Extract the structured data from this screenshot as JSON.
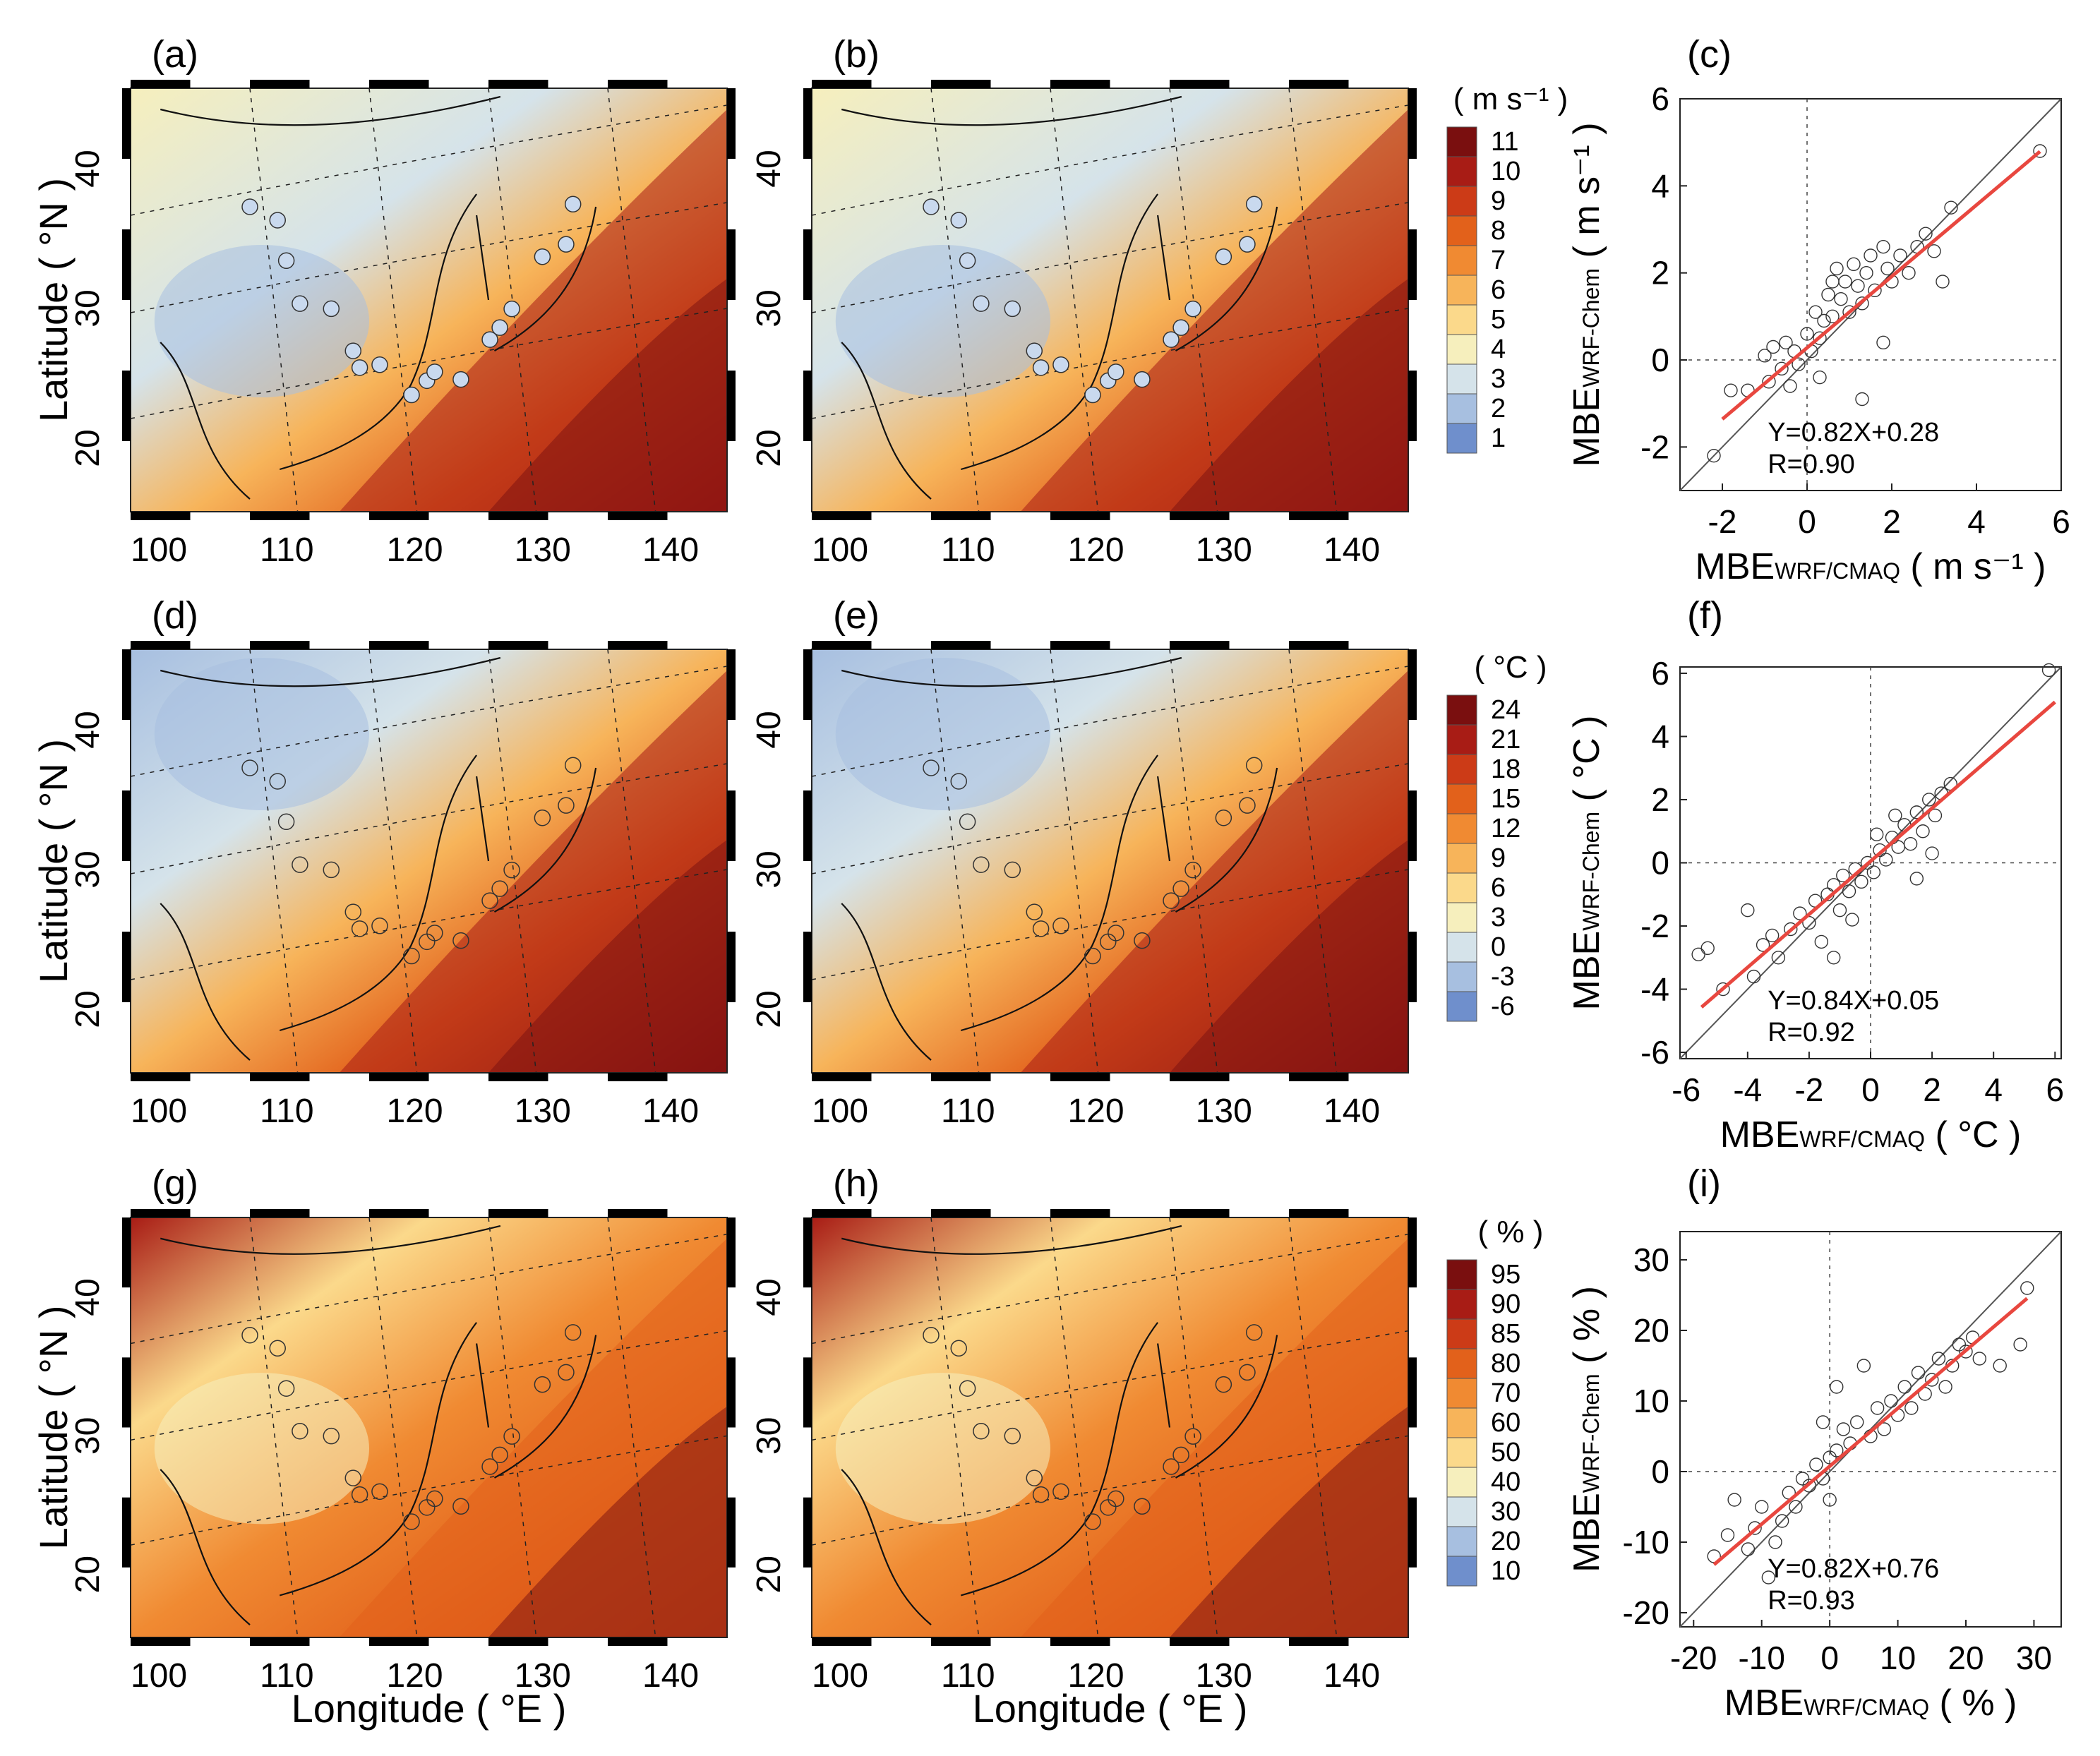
{
  "figure": {
    "maps": {
      "panel_labels": [
        "(a)",
        "(b)",
        "(d)",
        "(e)",
        "(g)",
        "(h)"
      ],
      "x_ticks": [
        "100",
        "110",
        "120",
        "130",
        "140"
      ],
      "y_ticks": [
        "20",
        "30",
        "40"
      ],
      "ylabel": "Latitude ( °N )",
      "xlabel": "Longitude ( °E )",
      "coast_color": "#111111",
      "grid_color": "#222222"
    },
    "colorbars": [
      {
        "unit": "( m s⁻¹ )",
        "labels": [
          "11",
          "10",
          "9",
          "8",
          "7",
          "6",
          "5",
          "4",
          "3",
          "2",
          "1"
        ],
        "colors": [
          "#7a0f0f",
          "#a81c15",
          "#cc3b17",
          "#e2611b",
          "#f08a32",
          "#f7b45a",
          "#fbd98b",
          "#f6efbd",
          "#d5e3ea",
          "#a7bfe0",
          "#6f8fcc"
        ]
      },
      {
        "unit": "( °C )",
        "labels": [
          "24",
          "21",
          "18",
          "15",
          "12",
          "9",
          "6",
          "3",
          "0",
          "-3",
          "-6"
        ],
        "colors": [
          "#7a0f0f",
          "#a81c15",
          "#cc3b17",
          "#e2611b",
          "#f08a32",
          "#f7b45a",
          "#fbd98b",
          "#f6efbd",
          "#d5e3ea",
          "#a7bfe0",
          "#6f8fcc"
        ]
      },
      {
        "unit": "( % )",
        "labels": [
          "95",
          "90",
          "85",
          "80",
          "70",
          "60",
          "50",
          "40",
          "30",
          "20",
          "10"
        ],
        "colors": [
          "#7a0f0f",
          "#a81c15",
          "#cc3b17",
          "#e2611b",
          "#f08a32",
          "#f7b45a",
          "#fbd98b",
          "#f6efbd",
          "#d5e3ea",
          "#a7bfe0",
          "#6f8fcc"
        ]
      }
    ],
    "scatter_style": {
      "identity_color": "#555555",
      "fit_color": "#e8473f",
      "marker_color": "#333333"
    }
  },
  "chart_data": [
    {
      "type": "scatter",
      "panel": "(c)",
      "variable": "wind speed",
      "xlabel_main": "MBE",
      "xlabel_sub": "WRF/CMAQ",
      "xlabel_unit": "( m s⁻¹ )",
      "ylabel_main": "MBE",
      "ylabel_sub": "WRF-Chem",
      "ylabel_unit": "( m s⁻¹ )",
      "xlim": [
        -3,
        6
      ],
      "ylim": [
        -3,
        6
      ],
      "xticks": [
        -2,
        0,
        2,
        4,
        6
      ],
      "yticks": [
        -2,
        0,
        2,
        4,
        6
      ],
      "fit": {
        "slope": 0.82,
        "intercept": 0.28,
        "x_range": [
          -2,
          5.5
        ]
      },
      "equation": "Y=0.82X+0.28",
      "r_text": "R=0.90",
      "points": [
        [
          -2.2,
          -2.2
        ],
        [
          -1.8,
          -0.7
        ],
        [
          -1.4,
          -0.7
        ],
        [
          -1.0,
          0.1
        ],
        [
          -0.8,
          0.3
        ],
        [
          -0.6,
          -0.2
        ],
        [
          -0.5,
          0.4
        ],
        [
          -0.4,
          -0.6
        ],
        [
          -0.3,
          0.2
        ],
        [
          -0.2,
          -0.1
        ],
        [
          0.0,
          0.6
        ],
        [
          0.1,
          0.2
        ],
        [
          0.2,
          1.1
        ],
        [
          0.3,
          0.5
        ],
        [
          0.4,
          0.9
        ],
        [
          0.5,
          1.5
        ],
        [
          0.6,
          1.0
        ],
        [
          0.7,
          2.1
        ],
        [
          0.8,
          1.4
        ],
        [
          0.9,
          1.8
        ],
        [
          1.0,
          1.1
        ],
        [
          1.1,
          2.2
        ],
        [
          1.2,
          1.7
        ],
        [
          1.3,
          1.3
        ],
        [
          1.4,
          2.0
        ],
        [
          1.5,
          2.4
        ],
        [
          1.6,
          1.6
        ],
        [
          1.8,
          2.6
        ],
        [
          1.9,
          2.1
        ],
        [
          2.0,
          1.8
        ],
        [
          2.2,
          2.4
        ],
        [
          2.4,
          2.0
        ],
        [
          2.6,
          2.6
        ],
        [
          2.8,
          2.9
        ],
        [
          3.0,
          2.5
        ],
        [
          3.2,
          1.8
        ],
        [
          3.4,
          3.5
        ],
        [
          1.3,
          -0.9
        ],
        [
          0.3,
          -0.4
        ],
        [
          1.8,
          0.4
        ],
        [
          -0.9,
          -0.5
        ],
        [
          0.6,
          1.8
        ],
        [
          5.5,
          4.8
        ]
      ]
    },
    {
      "type": "scatter",
      "panel": "(f)",
      "variable": "temperature",
      "xlabel_main": "MBE",
      "xlabel_sub": "WRF/CMAQ",
      "xlabel_unit": "( °C )",
      "ylabel_main": "MBE",
      "ylabel_sub": "WRF-Chem",
      "ylabel_unit": "( °C )",
      "xlim": [
        -6.2,
        6.2
      ],
      "ylim": [
        -6.2,
        6.2
      ],
      "xticks": [
        -6,
        -4,
        -2,
        0,
        2,
        4,
        6
      ],
      "yticks": [
        -6,
        -4,
        -2,
        0,
        2,
        4,
        6
      ],
      "fit": {
        "slope": 0.84,
        "intercept": 0.05,
        "x_range": [
          -5.5,
          6
        ]
      },
      "equation": "Y=0.84X+0.05",
      "r_text": "R=0.92",
      "points": [
        [
          -5.6,
          -2.9
        ],
        [
          -5.3,
          -2.7
        ],
        [
          -4.8,
          -4.0
        ],
        [
          -4.0,
          -1.5
        ],
        [
          -3.8,
          -3.6
        ],
        [
          -3.5,
          -2.6
        ],
        [
          -3.2,
          -2.3
        ],
        [
          -3.0,
          -3.0
        ],
        [
          -2.6,
          -2.1
        ],
        [
          -2.3,
          -1.6
        ],
        [
          -2.0,
          -1.9
        ],
        [
          -1.8,
          -1.2
        ],
        [
          -1.6,
          -2.5
        ],
        [
          -1.4,
          -1.0
        ],
        [
          -1.2,
          -0.7
        ],
        [
          -1.0,
          -1.5
        ],
        [
          -0.9,
          -0.4
        ],
        [
          -0.7,
          -0.9
        ],
        [
          -0.5,
          -0.2
        ],
        [
          -0.3,
          -0.6
        ],
        [
          -0.1,
          0.0
        ],
        [
          0.1,
          -0.3
        ],
        [
          0.3,
          0.4
        ],
        [
          0.5,
          0.1
        ],
        [
          0.7,
          0.8
        ],
        [
          0.9,
          0.5
        ],
        [
          1.1,
          1.2
        ],
        [
          1.3,
          0.6
        ],
        [
          1.5,
          1.6
        ],
        [
          1.7,
          1.0
        ],
        [
          1.9,
          2.0
        ],
        [
          2.1,
          1.5
        ],
        [
          2.3,
          2.2
        ],
        [
          2.6,
          2.5
        ],
        [
          1.5,
          -0.5
        ],
        [
          -1.2,
          -3.0
        ],
        [
          0.8,
          1.5
        ],
        [
          -0.6,
          -1.8
        ],
        [
          0.2,
          0.9
        ],
        [
          2.0,
          0.3
        ],
        [
          5.8,
          6.1
        ]
      ]
    },
    {
      "type": "scatter",
      "panel": "(i)",
      "variable": "relative humidity",
      "xlabel_main": "MBE",
      "xlabel_sub": "WRF/CMAQ",
      "xlabel_unit": "( % )",
      "ylabel_main": "MBE",
      "ylabel_sub": "WRF-Chem",
      "ylabel_unit": "( % )",
      "xlim": [
        -22,
        34
      ],
      "ylim": [
        -22,
        34
      ],
      "xticks": [
        -20,
        -10,
        0,
        10,
        20,
        30
      ],
      "yticks": [
        -20,
        -10,
        0,
        10,
        20,
        30
      ],
      "fit": {
        "slope": 0.82,
        "intercept": 0.76,
        "x_range": [
          -17,
          29
        ]
      },
      "equation": "Y=0.82X+0.76",
      "r_text": "R=0.93",
      "points": [
        [
          -17,
          -12
        ],
        [
          -15,
          -9
        ],
        [
          -14,
          -4
        ],
        [
          -12,
          -11
        ],
        [
          -11,
          -8
        ],
        [
          -10,
          -5
        ],
        [
          -9,
          -15
        ],
        [
          -8,
          -10
        ],
        [
          -7,
          -7
        ],
        [
          -6,
          -3
        ],
        [
          -5,
          -5
        ],
        [
          -4,
          -1
        ],
        [
          -3,
          -2
        ],
        [
          -2,
          1
        ],
        [
          -1,
          -1
        ],
        [
          0,
          2
        ],
        [
          1,
          3
        ],
        [
          1,
          12
        ],
        [
          2,
          6
        ],
        [
          3,
          4
        ],
        [
          4,
          7
        ],
        [
          5,
          15
        ],
        [
          6,
          5
        ],
        [
          7,
          9
        ],
        [
          8,
          6
        ],
        [
          9,
          10
        ],
        [
          10,
          8
        ],
        [
          11,
          12
        ],
        [
          12,
          9
        ],
        [
          13,
          14
        ],
        [
          14,
          11
        ],
        [
          15,
          13
        ],
        [
          16,
          16
        ],
        [
          17,
          12
        ],
        [
          18,
          15
        ],
        [
          19,
          18
        ],
        [
          20,
          17
        ],
        [
          21,
          19
        ],
        [
          22,
          16
        ],
        [
          25,
          15
        ],
        [
          29,
          26
        ],
        [
          28,
          18
        ],
        [
          -1,
          7
        ],
        [
          0,
          -4
        ]
      ]
    }
  ]
}
